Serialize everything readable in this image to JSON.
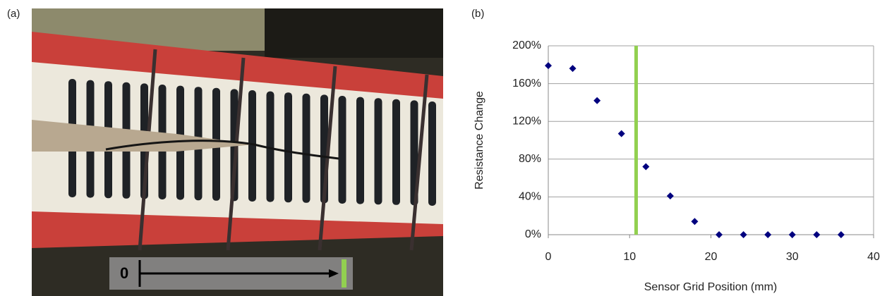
{
  "panel_a": {
    "label": "(a)",
    "scale_start": "0"
  },
  "chart_data": {
    "type": "scatter",
    "panel_label": "(b)",
    "x_label": "Sensor Grid Position (mm)",
    "y_label": "Resistance Change",
    "x": [
      0,
      3,
      6,
      9,
      12,
      15,
      18,
      21,
      24,
      27,
      30,
      33,
      36
    ],
    "series": [
      {
        "color": "#00007f",
        "values": [
          179,
          176,
          142,
          107,
          72,
          41,
          14,
          0,
          0,
          0,
          0,
          0,
          0
        ]
      }
    ],
    "xlim": [
      0,
      40
    ],
    "xticks": [
      0,
      10,
      20,
      30,
      40
    ],
    "ylim": [
      0,
      200
    ],
    "yticks": [
      {
        "value": 0,
        "label": "0%"
      },
      {
        "value": 40,
        "label": "40%"
      },
      {
        "value": 80,
        "label": "80%"
      },
      {
        "value": 120,
        "label": "120%"
      },
      {
        "value": 160,
        "label": "160%"
      },
      {
        "value": 200,
        "label": "200%"
      }
    ],
    "grid": true,
    "marker_x": 10.8,
    "marker_color": "#92d050"
  }
}
